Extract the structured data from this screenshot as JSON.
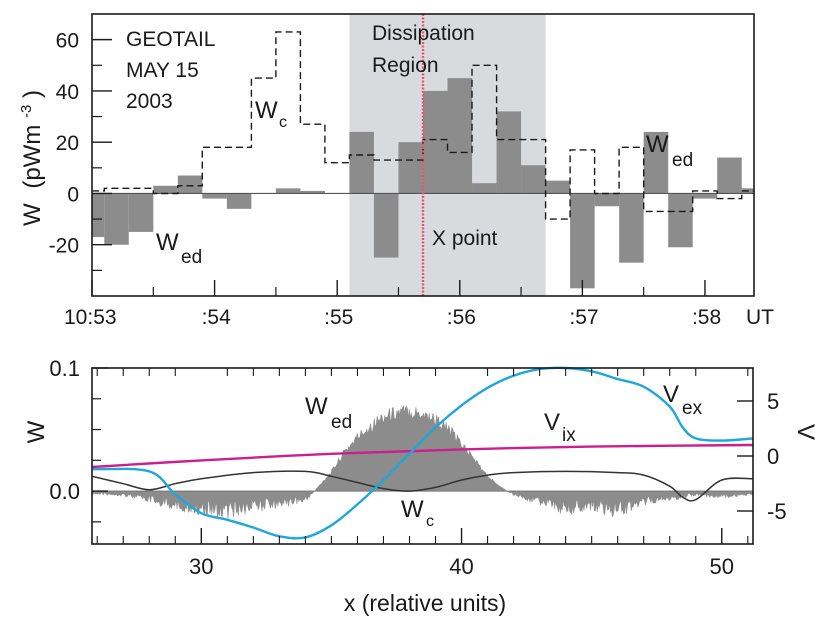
{
  "chart_data": [
    {
      "type": "bar",
      "title": "",
      "xlabel": "UT",
      "ylabel": "W",
      "ylabel_unit": "(pWm",
      "ylabel_exp": "-3",
      "ylabel_close": ")",
      "xlim_min": [
        53,
        58.4
      ],
      "ylim": [
        -40,
        70
      ],
      "yticks": [
        -20,
        0,
        20,
        40,
        60
      ],
      "ytick_labels": [
        "-20",
        "0",
        "20",
        "40",
        "60"
      ],
      "xtick_labels": [
        "10:53",
        ":54",
        ":55",
        ":56",
        ":57",
        ":58",
        "UT"
      ],
      "xticks_min": [
        53,
        54,
        55,
        56,
        57,
        58
      ],
      "annotations": {
        "source_1": "GEOTAIL",
        "source_2": "MAY 15",
        "source_3": "2003",
        "region_1": "Dissipation",
        "region_2": "Region",
        "xpoint": "X point",
        "wc_main": "W",
        "wc_sub": "c",
        "wed_main": "W",
        "wed_sub": "ed"
      },
      "dissipation_region_min": [
        55.1,
        56.7
      ],
      "x_point_min": 55.7,
      "series": [
        {
          "name": "Wed",
          "style": "filled-bars",
          "color": "#8c8c8c",
          "bars": [
            {
              "x0": 53.0,
              "x1": 53.1,
              "v": -17
            },
            {
              "x0": 53.1,
              "x1": 53.3,
              "v": -20
            },
            {
              "x0": 53.3,
              "x1": 53.5,
              "v": -15
            },
            {
              "x0": 53.5,
              "x1": 53.7,
              "v": 3
            },
            {
              "x0": 53.7,
              "x1": 53.9,
              "v": 7
            },
            {
              "x0": 53.9,
              "x1": 54.1,
              "v": -2
            },
            {
              "x0": 54.1,
              "x1": 54.3,
              "v": -6
            },
            {
              "x0": 54.5,
              "x1": 54.7,
              "v": 2
            },
            {
              "x0": 54.7,
              "x1": 54.9,
              "v": 1
            },
            {
              "x0": 55.1,
              "x1": 55.3,
              "v": 24
            },
            {
              "x0": 55.3,
              "x1": 55.5,
              "v": -25
            },
            {
              "x0": 55.5,
              "x1": 55.7,
              "v": 20
            },
            {
              "x0": 55.7,
              "x1": 55.9,
              "v": 40
            },
            {
              "x0": 55.9,
              "x1": 56.1,
              "v": 45
            },
            {
              "x0": 56.1,
              "x1": 56.3,
              "v": 4
            },
            {
              "x0": 56.3,
              "x1": 56.5,
              "v": 32
            },
            {
              "x0": 56.5,
              "x1": 56.7,
              "v": 11
            },
            {
              "x0": 56.7,
              "x1": 56.9,
              "v": 5
            },
            {
              "x0": 56.9,
              "x1": 57.1,
              "v": -37
            },
            {
              "x0": 57.1,
              "x1": 57.3,
              "v": -5
            },
            {
              "x0": 57.3,
              "x1": 57.5,
              "v": -27
            },
            {
              "x0": 57.5,
              "x1": 57.7,
              "v": 24
            },
            {
              "x0": 57.7,
              "x1": 57.9,
              "v": -21
            },
            {
              "x0": 57.9,
              "x1": 58.1,
              "v": -2
            },
            {
              "x0": 58.1,
              "x1": 58.3,
              "v": 14
            },
            {
              "x0": 58.3,
              "x1": 58.4,
              "v": 2
            }
          ]
        },
        {
          "name": "Wc",
          "style": "dashed-step",
          "color": "#1a1a1a",
          "points": [
            [
              53.0,
              1
            ],
            [
              53.1,
              1
            ],
            [
              53.1,
              2
            ],
            [
              53.5,
              2
            ],
            [
              53.5,
              0
            ],
            [
              53.7,
              0
            ],
            [
              53.7,
              3
            ],
            [
              53.9,
              3
            ],
            [
              53.9,
              18
            ],
            [
              54.3,
              18
            ],
            [
              54.3,
              45
            ],
            [
              54.5,
              45
            ],
            [
              54.5,
              63
            ],
            [
              54.7,
              63
            ],
            [
              54.7,
              27
            ],
            [
              54.9,
              27
            ],
            [
              54.9,
              12
            ],
            [
              55.1,
              12
            ],
            [
              55.1,
              15
            ],
            [
              55.3,
              15
            ],
            [
              55.3,
              13
            ],
            [
              55.7,
              13
            ],
            [
              55.7,
              21
            ],
            [
              55.9,
              21
            ],
            [
              55.9,
              16
            ],
            [
              56.1,
              16
            ],
            [
              56.1,
              50
            ],
            [
              56.3,
              50
            ],
            [
              56.3,
              21
            ],
            [
              56.7,
              21
            ],
            [
              56.7,
              -10
            ],
            [
              56.9,
              -10
            ],
            [
              56.9,
              17
            ],
            [
              57.1,
              17
            ],
            [
              57.1,
              0
            ],
            [
              57.3,
              0
            ],
            [
              57.3,
              18
            ],
            [
              57.5,
              18
            ],
            [
              57.5,
              -7
            ],
            [
              57.9,
              -7
            ],
            [
              57.9,
              1
            ],
            [
              58.1,
              1
            ],
            [
              58.1,
              -2
            ],
            [
              58.3,
              -2
            ],
            [
              58.3,
              1
            ],
            [
              58.4,
              1
            ]
          ]
        }
      ]
    },
    {
      "type": "line",
      "title": "",
      "xlabel": "x (relative units)",
      "ylabel": "W",
      "ylabel_right": "V",
      "xlim": [
        25.8,
        51.2
      ],
      "ylim": [
        -0.043,
        0.1
      ],
      "ylim_right": [
        -8,
        8
      ],
      "xticks": [
        30,
        40,
        50
      ],
      "xtick_labels": [
        "30",
        "40",
        "50"
      ],
      "yticks": [
        0.0,
        0.1
      ],
      "ytick_labels": [
        "0.0",
        "0.1"
      ],
      "yticks_right": [
        -5,
        0,
        5
      ],
      "ytick_labels_right": [
        "-5",
        "0",
        "5"
      ],
      "annotations": {
        "wed_main": "W",
        "wed_sub": "ed",
        "wc_main": "W",
        "wc_sub": "c",
        "vix_main": "V",
        "vix_sub": "ix",
        "vex_main": "V",
        "vex_sub": "ex"
      },
      "series": [
        {
          "name": "Wed",
          "style": "filled-area",
          "color": "#8c8c8c",
          "x": [
            25.8,
            27,
            28,
            29,
            30,
            31,
            32,
            33,
            34,
            34.5,
            35,
            35.5,
            36,
            36.5,
            37,
            37.5,
            38,
            38.5,
            39,
            39.5,
            40,
            40.5,
            41,
            41.5,
            42,
            43,
            44,
            45,
            46,
            47,
            48,
            49,
            50,
            51.2
          ],
          "y": [
            -0.003,
            -0.004,
            -0.01,
            -0.016,
            -0.02,
            -0.024,
            -0.018,
            -0.014,
            -0.01,
            0.004,
            0.017,
            0.035,
            0.048,
            0.058,
            0.066,
            0.07,
            0.071,
            0.069,
            0.064,
            0.055,
            0.042,
            0.028,
            0.013,
            0.004,
            -0.004,
            -0.012,
            -0.02,
            -0.016,
            -0.022,
            -0.012,
            -0.008,
            -0.004,
            -0.006,
            -0.004
          ]
        },
        {
          "name": "Wc",
          "style": "line",
          "color": "#333333",
          "x": [
            25.8,
            27,
            28,
            29,
            30,
            32,
            34,
            35,
            36,
            37,
            38,
            39,
            40,
            41,
            42,
            44,
            46,
            47,
            48,
            48.5,
            49,
            50,
            51.2
          ],
          "y": [
            0.012,
            0.006,
            0.001,
            0.006,
            0.01,
            0.015,
            0.016,
            0.012,
            0.007,
            0.002,
            0.0,
            0.003,
            0.009,
            0.013,
            0.015,
            0.016,
            0.015,
            0.013,
            0.004,
            -0.005,
            -0.007,
            0.009,
            0.01
          ]
        },
        {
          "name": "Vix",
          "style": "line",
          "axis": "right",
          "color": "#cc1f8f",
          "x": [
            25.8,
            30,
            35,
            40,
            45,
            51.2
          ],
          "y": [
            -1.0,
            -0.4,
            0.2,
            0.6,
            0.85,
            1.0
          ]
        },
        {
          "name": "Vex",
          "style": "line",
          "axis": "right",
          "color": "#1ea7dc",
          "x": [
            25.8,
            28,
            29,
            30,
            31,
            32,
            33,
            34,
            35,
            36,
            37,
            38,
            39,
            40,
            41,
            42,
            43,
            44,
            45,
            46,
            47,
            48,
            48.5,
            49,
            50,
            51.2
          ],
          "y": [
            -1.2,
            -1.4,
            -3.5,
            -5.2,
            -5.8,
            -6.5,
            -7.3,
            -7.4,
            -6.3,
            -4.4,
            -2.2,
            0.2,
            2.6,
            4.6,
            6.2,
            7.3,
            7.9,
            8.0,
            7.7,
            7.0,
            6.3,
            4.5,
            2.6,
            1.6,
            1.4,
            1.6
          ]
        }
      ]
    }
  ]
}
